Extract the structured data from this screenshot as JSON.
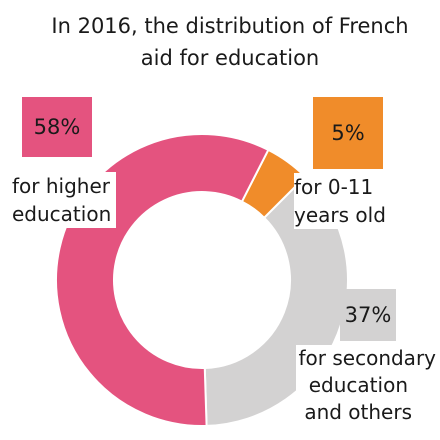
{
  "title_lines": [
    "In 2016, the distribution of French",
    "aid for education"
  ],
  "chart_data": {
    "type": "pie",
    "title": "In 2016, the distribution of French aid for education",
    "slices": [
      {
        "value": 5,
        "value_label": "5%",
        "label_lines": [
          "for 0-11",
          "years old"
        ],
        "color": "#f08c2a"
      },
      {
        "value": 37,
        "value_label": "37%",
        "label_lines": [
          "for secondary",
          "education",
          "and others"
        ],
        "color": "#d3d2d2"
      },
      {
        "value": 58,
        "value_label": "58%",
        "label_lines": [
          "for higher",
          "education"
        ],
        "color": "#e4537f"
      }
    ]
  }
}
